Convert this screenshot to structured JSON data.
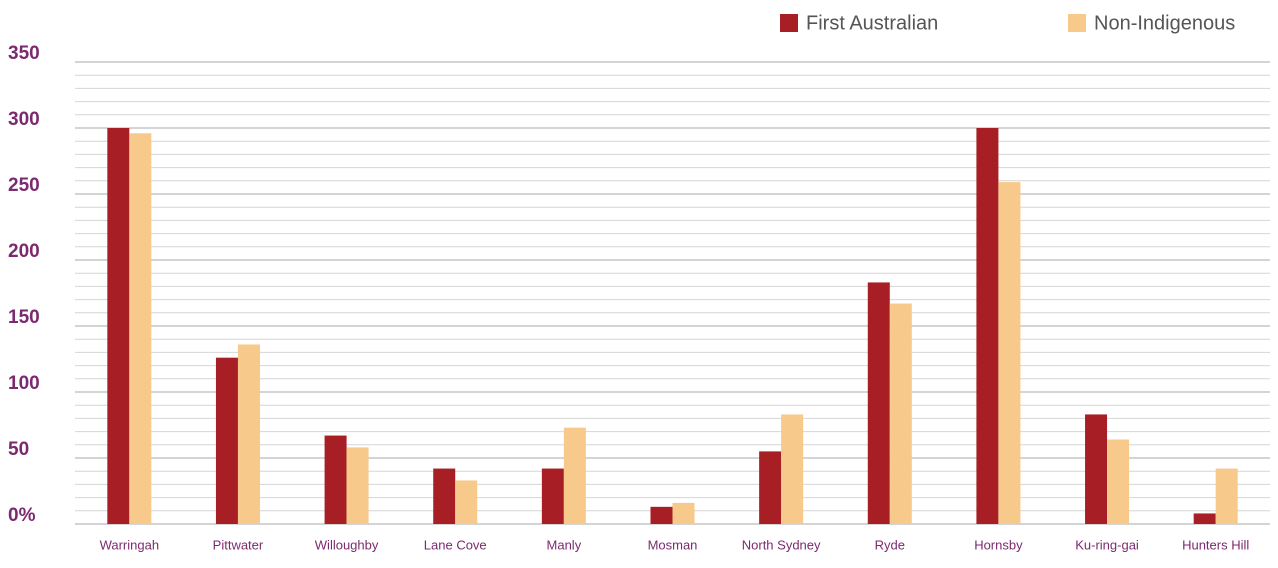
{
  "chart_data": {
    "type": "bar",
    "categories": [
      "Warringah",
      "Pittwater",
      "Willoughby",
      "Lane Cove",
      "Manly",
      "Mosman",
      "North Sydney",
      "Ryde",
      "Hornsby",
      "Ku-ring-gai",
      "Hunters Hill"
    ],
    "series": [
      {
        "name": "First Australian",
        "color": "#a81e25",
        "values": [
          300,
          126,
          67,
          42,
          42,
          13,
          55,
          183,
          300,
          83,
          8
        ]
      },
      {
        "name": "Non-Indigenous",
        "color": "#f7c98b",
        "values": [
          296,
          136,
          58,
          33,
          73,
          16,
          83,
          167,
          259,
          64,
          42
        ]
      }
    ],
    "ylim": [
      0,
      350
    ],
    "yticks": [
      {
        "value": 0,
        "label": "0%"
      },
      50,
      100,
      150,
      200,
      250,
      300,
      350
    ],
    "grid": true,
    "legend": "top-right"
  }
}
